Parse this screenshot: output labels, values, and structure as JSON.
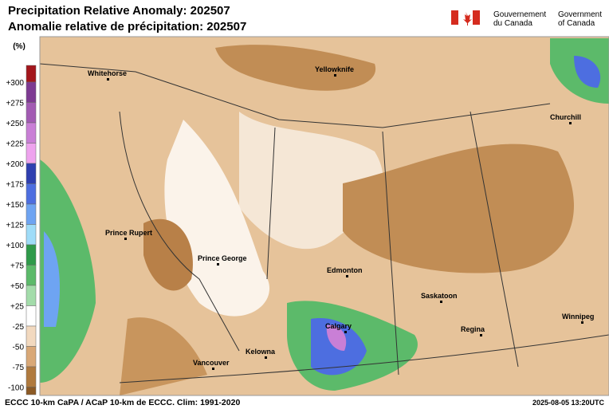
{
  "header": {
    "title_en": "Precipitation Relative Anomaly: 202507",
    "title_fr": "Anomalie relative de précipitation: 202507",
    "gov_fr": [
      "Gouvernement",
      "du Canada"
    ],
    "gov_en": [
      "Government",
      "of Canada"
    ]
  },
  "legend": {
    "unit": "(%)",
    "items": [
      {
        "label": "+300",
        "color": "#5b1a78"
      },
      {
        "label": "+275",
        "color": "#7d3a92"
      },
      {
        "label": "+250",
        "color": "#a25bb3"
      },
      {
        "label": "+225",
        "color": "#c97fd6"
      },
      {
        "label": "+200",
        "color": "#eea3ee"
      },
      {
        "label": "+175",
        "color": "#2f3fb0"
      },
      {
        "label": "+150",
        "color": "#4d6ee0"
      },
      {
        "label": "+125",
        "color": "#6ea4f2"
      },
      {
        "label": "+100",
        "color": "#9fdcf8"
      },
      {
        "label": "+75",
        "color": "#2f9a4a"
      },
      {
        "label": "+50",
        "color": "#5cba6a"
      },
      {
        "label": "+25",
        "color": "#a3dcaa"
      },
      {
        "label": "-25",
        "color": "#ffffff"
      },
      {
        "label": "-50",
        "color": "#f2d9bf"
      },
      {
        "label": "-75",
        "color": "#d9a877"
      },
      {
        "label": "-100",
        "color": "#b07a3e"
      }
    ],
    "top_color": "#a3161c",
    "bottom_color": "#8c5a25"
  },
  "cities": [
    {
      "name": "Whitehorse"
    },
    {
      "name": "Yellowknife"
    },
    {
      "name": "Churchill"
    },
    {
      "name": "Prince Rupert"
    },
    {
      "name": "Prince George"
    },
    {
      "name": "Edmonton"
    },
    {
      "name": "Saskatoon"
    },
    {
      "name": "Calgary"
    },
    {
      "name": "Regina"
    },
    {
      "name": "Winnipeg"
    },
    {
      "name": "Kelowna"
    },
    {
      "name": "Vancouver"
    }
  ],
  "footer": {
    "left": "ECCC 10-km CaPA / ACaP 10-km de ECCC. Clim: 1991-2020",
    "right": "2025-08-05 13:20UTC"
  }
}
